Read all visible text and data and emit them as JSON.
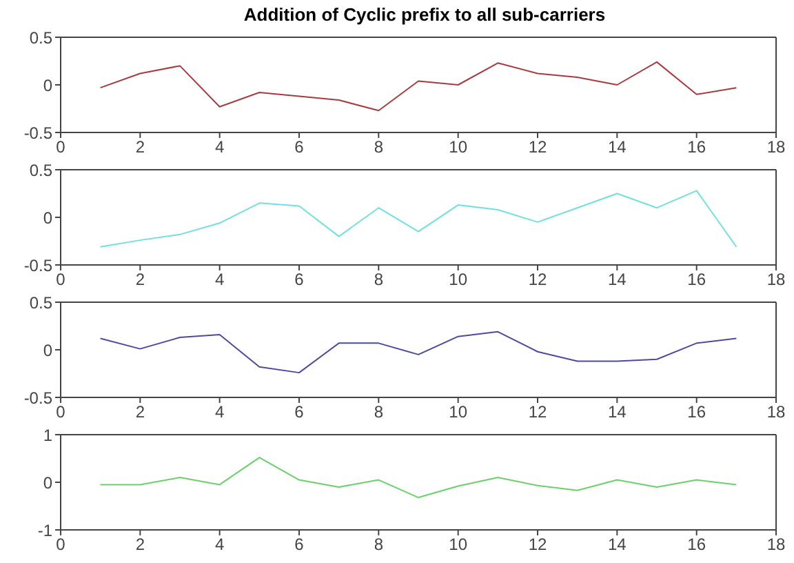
{
  "chart_data": [
    {
      "type": "line",
      "title": "Addition of Cyclic prefix to all  sub-carriers",
      "x": [
        1,
        2,
        3,
        4,
        5,
        6,
        7,
        8,
        9,
        10,
        11,
        12,
        13,
        14,
        15,
        16,
        17
      ],
      "xlim": [
        0,
        18
      ],
      "xticks": [
        0,
        2,
        4,
        6,
        8,
        10,
        12,
        14,
        16,
        18
      ],
      "ylim": [
        -0.5,
        0.5
      ],
      "yticks": [
        -0.5,
        0,
        0.5
      ],
      "grid": false,
      "legend": false,
      "marker": "none",
      "line_style": "solid",
      "series": [
        {
          "color": "#a83a3e",
          "values": [
            -0.03,
            0.12,
            0.2,
            -0.23,
            -0.08,
            -0.12,
            -0.16,
            -0.27,
            0.04,
            0.0,
            0.23,
            0.12,
            0.08,
            0.0,
            0.24,
            -0.1,
            -0.03
          ]
        }
      ]
    },
    {
      "type": "line",
      "x": [
        1,
        2,
        3,
        4,
        5,
        6,
        7,
        8,
        9,
        10,
        11,
        12,
        13,
        14,
        15,
        16,
        17
      ],
      "xlim": [
        0,
        18
      ],
      "xticks": [
        0,
        2,
        4,
        6,
        8,
        10,
        12,
        14,
        16,
        18
      ],
      "ylim": [
        -0.5,
        0.5
      ],
      "yticks": [
        -0.5,
        0,
        0.5
      ],
      "grid": false,
      "legend": false,
      "marker": "none",
      "line_style": "solid",
      "series": [
        {
          "color": "#6fe0e0",
          "values": [
            -0.31,
            -0.24,
            -0.18,
            -0.06,
            0.15,
            0.12,
            -0.2,
            0.1,
            -0.15,
            0.13,
            0.08,
            -0.05,
            0.1,
            0.25,
            0.1,
            0.28,
            -0.31
          ]
        }
      ]
    },
    {
      "type": "line",
      "x": [
        1,
        2,
        3,
        4,
        5,
        6,
        7,
        8,
        9,
        10,
        11,
        12,
        13,
        14,
        15,
        16,
        17
      ],
      "xlim": [
        0,
        18
      ],
      "xticks": [
        0,
        2,
        4,
        6,
        8,
        10,
        12,
        14,
        16,
        18
      ],
      "ylim": [
        -0.5,
        0.5
      ],
      "yticks": [
        -0.5,
        0,
        0.5
      ],
      "grid": false,
      "legend": false,
      "marker": "none",
      "line_style": "solid",
      "series": [
        {
          "color": "#4a4aa0",
          "values": [
            0.12,
            0.01,
            0.13,
            0.16,
            -0.18,
            -0.24,
            0.07,
            0.07,
            -0.05,
            0.14,
            0.19,
            -0.02,
            -0.12,
            -0.12,
            -0.1,
            0.07,
            0.12
          ]
        }
      ]
    },
    {
      "type": "line",
      "x": [
        1,
        2,
        3,
        4,
        5,
        6,
        7,
        8,
        9,
        10,
        11,
        12,
        13,
        14,
        15,
        16,
        17
      ],
      "xlim": [
        0,
        18
      ],
      "xticks": [
        0,
        2,
        4,
        6,
        8,
        10,
        12,
        14,
        16,
        18
      ],
      "ylim": [
        -1,
        1
      ],
      "yticks": [
        -1,
        0,
        1
      ],
      "grid": false,
      "legend": false,
      "marker": "none",
      "line_style": "solid",
      "series": [
        {
          "color": "#6ad06a",
          "values": [
            -0.05,
            -0.05,
            0.1,
            -0.05,
            0.52,
            0.05,
            -0.1,
            0.05,
            -0.32,
            -0.08,
            0.1,
            -0.07,
            -0.17,
            0.05,
            -0.1,
            0.05,
            -0.05
          ]
        }
      ]
    }
  ]
}
